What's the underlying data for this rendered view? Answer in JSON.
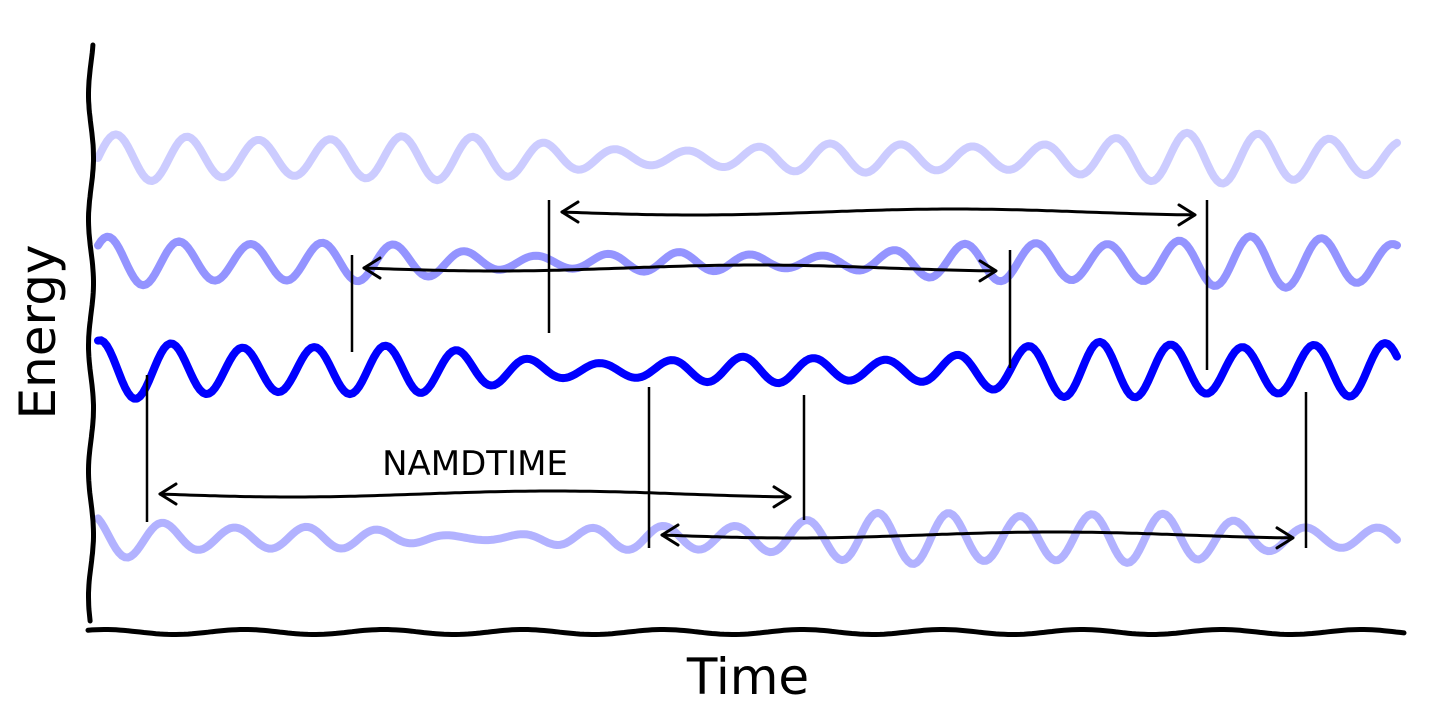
{
  "axes": {
    "x_label": "Time",
    "y_label": "Energy"
  },
  "annotation": {
    "label": "NAMDTIME"
  },
  "colors": {
    "background": "#ffffff",
    "axis": "#000000",
    "wave": "#0000ff",
    "arrow": "#000000"
  },
  "waves": [
    {
      "opacity": 0.2
    },
    {
      "opacity": 0.42
    },
    {
      "opacity": 1.0
    },
    {
      "opacity": 0.3
    }
  ]
}
